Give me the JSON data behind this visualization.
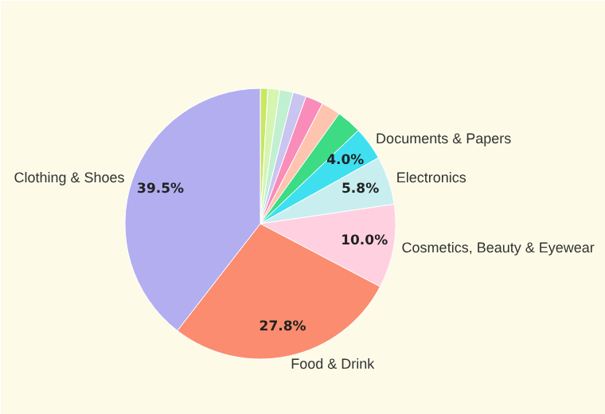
{
  "chart_data": {
    "type": "pie",
    "categories": [
      null,
      null,
      null,
      null,
      null,
      null,
      null,
      "Documents & Papers",
      "Electronics",
      "Cosmetics, Beauty & Eyewear",
      "Food & Drink",
      "Clothing & Shoes"
    ],
    "values": [
      0.9,
      1.4,
      1.6,
      1.6,
      2.1,
      2.3,
      3.0,
      4.0,
      5.8,
      10.0,
      27.8,
      39.5
    ],
    "colors": [
      "#c8e860",
      "#d5f5b0",
      "#c0f0d0",
      "#c9c5f0",
      "#f98cb9",
      "#ffc4b0",
      "#3ddc84",
      "#3ee0f0",
      "#c8eef0",
      "#ffd1e0",
      "#fb8c6f",
      "#b3aef0"
    ],
    "value_labels": [
      null,
      null,
      null,
      null,
      null,
      null,
      null,
      "4.0%",
      "5.8%",
      "10.0%",
      "27.8%",
      "39.5%"
    ]
  }
}
